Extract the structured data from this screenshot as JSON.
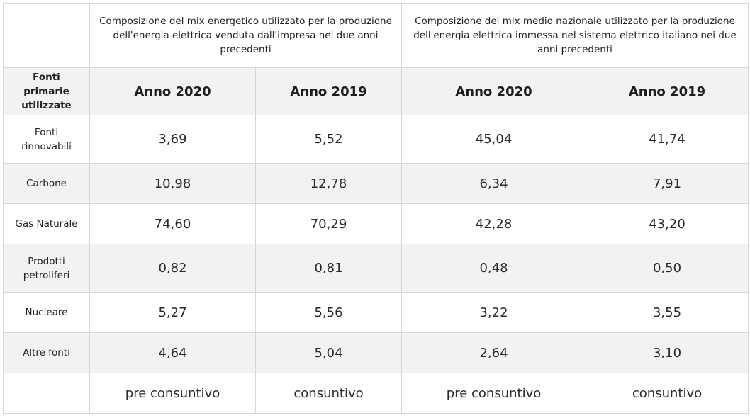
{
  "header": {
    "group_company": "Composizione del mix energetico utilizzato per la produzione dell'energia elettrica venduta dall'impresa nei due anni precedenti",
    "group_national": "Composizione del mix medio nazionale utilizzato per la produzione dell'energia elettrica immessa nel sistema elettrico italiano nei due anni precedenti"
  },
  "columns": {
    "source_label": "Fonti primarie utilizzate",
    "years": [
      "Anno 2020",
      "Anno 2019",
      "Anno 2020",
      "Anno 2019"
    ]
  },
  "rows": [
    {
      "label": "Fonti rinnovabili",
      "values": [
        "3,69",
        "5,52",
        "45,04",
        "41,74"
      ]
    },
    {
      "label": "Carbone",
      "values": [
        "10,98",
        "12,78",
        "6,34",
        "7,91"
      ]
    },
    {
      "label": "Gas Naturale",
      "values": [
        "74,60",
        "70,29",
        "42,28",
        "43,20"
      ]
    },
    {
      "label": "Prodotti petroliferi",
      "values": [
        "0,82",
        "0,81",
        "0,48",
        "0,50"
      ]
    },
    {
      "label": "Nucleare",
      "values": [
        "5,27",
        "5,56",
        "3,22",
        "3,55"
      ]
    },
    {
      "label": "Altre fonti",
      "values": [
        "4,64",
        "5,04",
        "2,64",
        "3,10"
      ]
    }
  ],
  "footer": {
    "labels": [
      "pre consuntivo",
      "consuntivo",
      "pre consuntivo",
      "consuntivo"
    ]
  }
}
